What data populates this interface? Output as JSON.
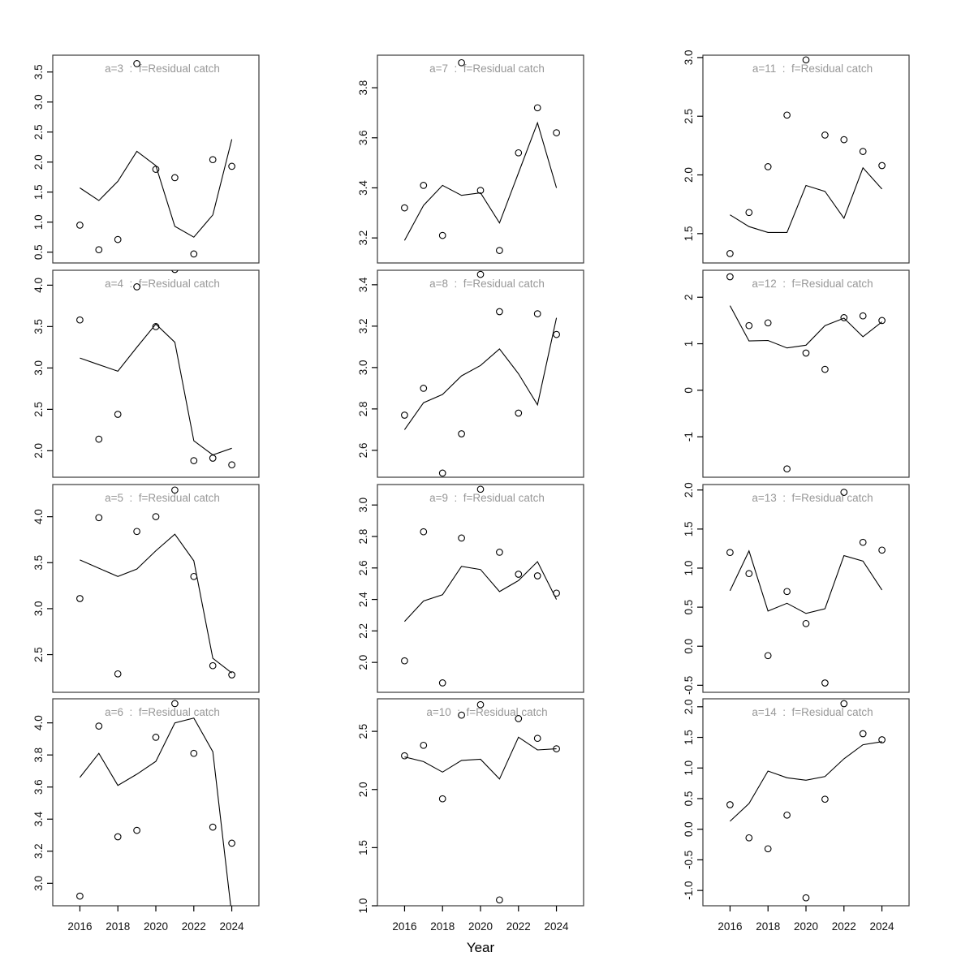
{
  "figure": {
    "xlabel": "Year",
    "x_tick_labels": [
      "2016",
      "2018",
      "2020",
      "2022",
      "2024"
    ],
    "x_tick_years": [
      2016,
      2018,
      2020,
      2022,
      2024
    ],
    "colors": {
      "line": "#000000",
      "point_stroke": "#000000",
      "panel_border": "#3a3a3a",
      "title_text": "#989898",
      "tick_text": "#111111"
    }
  },
  "chart_data": [
    {
      "id": "a3",
      "col": 0,
      "row": 0,
      "type": "line+scatter",
      "title": "a=3  :  f=Residual catch",
      "ylim": [
        0.32,
        3.78
      ],
      "ytick_values": [
        0.5,
        1.0,
        1.5,
        2.0,
        2.5,
        3.0,
        3.5
      ],
      "ytick_labels": [
        "0.5",
        "1.0",
        "1.5",
        "2.0",
        "2.5",
        "3.0",
        "3.5"
      ],
      "x": [
        2016,
        2017,
        2018,
        2019,
        2020,
        2021,
        2022,
        2023,
        2024
      ],
      "points": [
        0.95,
        0.54,
        0.71,
        3.64,
        1.88,
        1.74,
        0.47,
        2.04,
        1.93
      ],
      "line": [
        1.57,
        1.36,
        1.68,
        2.18,
        1.94,
        0.93,
        0.75,
        1.12,
        2.38
      ]
    },
    {
      "id": "a4",
      "col": 0,
      "row": 1,
      "type": "line+scatter",
      "title": "a=4  :  f=Residual catch",
      "ylim": [
        1.68,
        4.18
      ],
      "ytick_values": [
        2.0,
        2.5,
        3.0,
        3.5,
        4.0
      ],
      "ytick_labels": [
        "2.0",
        "2.5",
        "3.0",
        "3.5",
        "4.0"
      ],
      "x": [
        2016,
        2017,
        2018,
        2019,
        2020,
        2021,
        2022,
        2023,
        2024
      ],
      "points": [
        3.58,
        2.14,
        2.44,
        3.98,
        3.5,
        4.19,
        1.88,
        1.91,
        1.83
      ],
      "line": [
        3.12,
        3.04,
        2.96,
        3.25,
        3.53,
        3.31,
        2.12,
        1.95,
        2.03
      ]
    },
    {
      "id": "a5",
      "col": 0,
      "row": 2,
      "type": "line+scatter",
      "title": "a=5  :  f=Residual catch",
      "ylim": [
        2.09,
        4.35
      ],
      "ytick_values": [
        2.5,
        3.0,
        3.5,
        4.0
      ],
      "ytick_labels": [
        "2.5",
        "3.0",
        "3.5",
        "4.0"
      ],
      "x": [
        2016,
        2017,
        2018,
        2019,
        2020,
        2021,
        2022,
        2023,
        2024
      ],
      "points": [
        3.11,
        3.99,
        2.29,
        3.84,
        4.0,
        4.29,
        3.35,
        2.38,
        2.28
      ],
      "line": [
        3.53,
        3.44,
        3.35,
        3.43,
        3.63,
        3.81,
        3.52,
        2.46,
        2.3
      ]
    },
    {
      "id": "a6",
      "col": 0,
      "row": 3,
      "type": "line+scatter",
      "title": "a=6  :  f=Residual catch",
      "ylim": [
        2.86,
        4.15
      ],
      "ytick_values": [
        3.0,
        3.2,
        3.4,
        3.6,
        3.8,
        4.0
      ],
      "ytick_labels": [
        "3.0",
        "3.2",
        "3.4",
        "3.6",
        "3.8",
        "4.0"
      ],
      "x": [
        2016,
        2017,
        2018,
        2019,
        2020,
        2021,
        2022,
        2023,
        2024
      ],
      "points": [
        2.92,
        3.98,
        3.29,
        3.33,
        3.91,
        4.12,
        3.81,
        3.35,
        3.25
      ],
      "line": [
        3.66,
        3.81,
        3.61,
        3.68,
        3.76,
        4.0,
        4.03,
        3.82,
        2.8
      ]
    },
    {
      "id": "a7",
      "col": 1,
      "row": 0,
      "type": "line+scatter",
      "title": "a=7  :  f=Residual catch",
      "ylim": [
        3.1,
        3.93
      ],
      "ytick_values": [
        3.2,
        3.4,
        3.6,
        3.8
      ],
      "ytick_labels": [
        "3.2",
        "3.4",
        "3.6",
        "3.8"
      ],
      "x": [
        2016,
        2017,
        2018,
        2019,
        2020,
        2021,
        2022,
        2023,
        2024
      ],
      "points": [
        3.32,
        3.41,
        3.21,
        3.9,
        3.39,
        3.15,
        3.54,
        3.72,
        3.62
      ],
      "line": [
        3.19,
        3.33,
        3.41,
        3.37,
        3.38,
        3.26,
        3.46,
        3.66,
        3.4
      ]
    },
    {
      "id": "a8",
      "col": 1,
      "row": 1,
      "type": "line+scatter",
      "title": "a=8  :  f=Residual catch",
      "ylim": [
        2.47,
        3.47
      ],
      "ytick_values": [
        2.6,
        2.8,
        3.0,
        3.2,
        3.4
      ],
      "ytick_labels": [
        "2.6",
        "2.8",
        "3.0",
        "3.2",
        "3.4"
      ],
      "x": [
        2016,
        2017,
        2018,
        2019,
        2020,
        2021,
        2022,
        2023,
        2024
      ],
      "points": [
        2.77,
        2.9,
        2.49,
        2.68,
        3.45,
        3.27,
        2.78,
        3.26,
        3.16
      ],
      "line": [
        2.7,
        2.83,
        2.87,
        2.96,
        3.01,
        3.09,
        2.97,
        2.82,
        3.24
      ]
    },
    {
      "id": "a9",
      "col": 1,
      "row": 2,
      "type": "line+scatter",
      "title": "a=9  :  f=Residual catch",
      "ylim": [
        1.81,
        3.13
      ],
      "ytick_values": [
        2.0,
        2.2,
        2.4,
        2.6,
        2.8,
        3.0
      ],
      "ytick_labels": [
        "2.0",
        "2.2",
        "2.4",
        "2.6",
        "2.8",
        "3.0"
      ],
      "x": [
        2016,
        2017,
        2018,
        2019,
        2020,
        2021,
        2022,
        2023,
        2024
      ],
      "points": [
        2.01,
        2.83,
        1.87,
        2.79,
        3.1,
        2.7,
        2.56,
        2.55,
        2.44
      ],
      "line": [
        2.26,
        2.39,
        2.43,
        2.61,
        2.59,
        2.45,
        2.52,
        2.64,
        2.4
      ]
    },
    {
      "id": "a10",
      "col": 1,
      "row": 3,
      "type": "line+scatter",
      "title": "a=10  :  f=Residual catch",
      "ylim": [
        1.0,
        2.78
      ],
      "ytick_values": [
        1.0,
        1.5,
        2.0,
        2.5
      ],
      "ytick_labels": [
        "1.0",
        "1.5",
        "2.0",
        "2.5"
      ],
      "x": [
        2016,
        2017,
        2018,
        2019,
        2020,
        2021,
        2022,
        2023,
        2024
      ],
      "points": [
        2.29,
        2.38,
        1.92,
        2.64,
        2.73,
        1.05,
        2.61,
        2.44,
        2.35
      ],
      "line": [
        2.28,
        2.24,
        2.15,
        2.25,
        2.26,
        2.09,
        2.45,
        2.34,
        2.35
      ]
    },
    {
      "id": "a11",
      "col": 2,
      "row": 0,
      "type": "line+scatter",
      "title": "a=11  :  f=Residual catch",
      "ylim": [
        1.25,
        3.02
      ],
      "ytick_values": [
        1.5,
        2.0,
        2.5,
        3.0
      ],
      "ytick_labels": [
        "1.5",
        "2.0",
        "2.5",
        "3.0"
      ],
      "x": [
        2016,
        2017,
        2018,
        2019,
        2020,
        2021,
        2022,
        2023,
        2024
      ],
      "points": [
        1.33,
        1.68,
        2.07,
        2.51,
        2.98,
        2.34,
        2.3,
        2.2,
        2.08
      ],
      "line": [
        1.66,
        1.56,
        1.51,
        1.51,
        1.91,
        1.86,
        1.63,
        2.06,
        1.88
      ]
    },
    {
      "id": "a12",
      "col": 2,
      "row": 1,
      "type": "line+scatter",
      "title": "a=12  :  f=Residual catch",
      "ylim": [
        -1.87,
        2.58
      ],
      "ytick_values": [
        -1,
        0,
        1,
        2
      ],
      "ytick_labels": [
        "-1",
        "0",
        "1",
        "2"
      ],
      "x": [
        2016,
        2017,
        2018,
        2019,
        2020,
        2021,
        2022,
        2023,
        2024
      ],
      "points": [
        2.44,
        1.39,
        1.45,
        -1.69,
        0.8,
        0.45,
        1.56,
        1.6,
        1.5
      ],
      "line": [
        1.82,
        1.06,
        1.07,
        0.91,
        0.97,
        1.39,
        1.55,
        1.15,
        1.47
      ]
    },
    {
      "id": "a13",
      "col": 2,
      "row": 2,
      "type": "line+scatter",
      "title": "a=13  :  f=Residual catch",
      "ylim": [
        -0.59,
        2.07
      ],
      "ytick_values": [
        -0.5,
        0.0,
        0.5,
        1.0,
        1.5,
        2.0
      ],
      "ytick_labels": [
        "-0.5",
        "0.0",
        "0.5",
        "1.0",
        "1.5",
        "2.0"
      ],
      "x": [
        2016,
        2017,
        2018,
        2019,
        2020,
        2021,
        2022,
        2023,
        2024
      ],
      "points": [
        1.2,
        0.93,
        -0.12,
        0.7,
        0.29,
        -0.47,
        1.97,
        1.33,
        1.23
      ],
      "line": [
        0.71,
        1.22,
        0.45,
        0.55,
        0.42,
        0.48,
        1.16,
        1.09,
        0.72
      ]
    },
    {
      "id": "a14",
      "col": 2,
      "row": 3,
      "type": "line+scatter",
      "title": "a=14  :  f=Residual catch",
      "ylim": [
        -1.25,
        2.13
      ],
      "ytick_values": [
        -1.0,
        -0.5,
        0.0,
        0.5,
        1.0,
        1.5,
        2.0
      ],
      "ytick_labels": [
        "-1.0",
        "-0.5",
        "0.0",
        "0.5",
        "1.0",
        "1.5",
        "2.0"
      ],
      "x": [
        2016,
        2017,
        2018,
        2019,
        2020,
        2021,
        2022,
        2023,
        2024
      ],
      "points": [
        0.4,
        -0.14,
        -0.32,
        0.23,
        -1.12,
        0.49,
        2.05,
        1.56,
        1.46
      ],
      "line": [
        0.13,
        0.42,
        0.95,
        0.84,
        0.8,
        0.86,
        1.15,
        1.38,
        1.43
      ]
    }
  ]
}
